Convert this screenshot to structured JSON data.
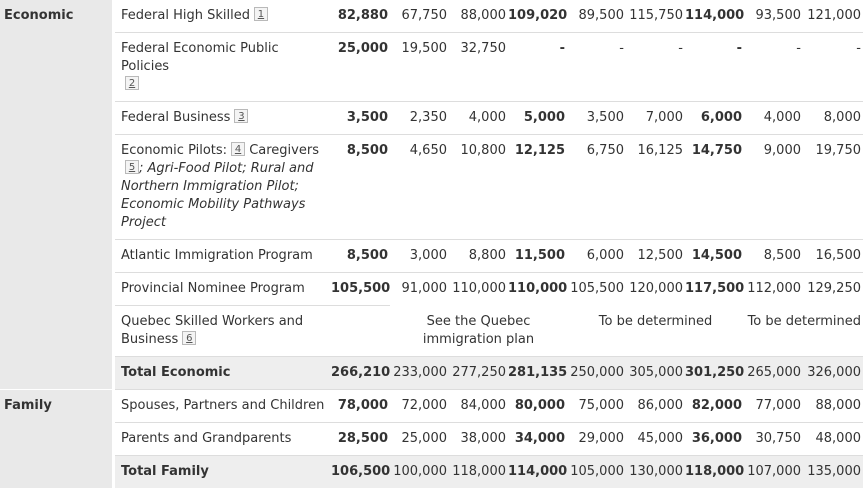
{
  "categories": {
    "economic": "Economic",
    "family": "Family"
  },
  "footnotes": [
    "1",
    "2",
    "3",
    "4",
    "5",
    "6"
  ],
  "rows": {
    "fhs": {
      "label": "Federal High Skilled",
      "values": [
        "82,880",
        "67,750",
        "88,000",
        "109,020",
        "89,500",
        "115,750",
        "114,000",
        "93,500",
        "121,000"
      ]
    },
    "fepp": {
      "label": "Federal Economic Public Policies",
      "values": [
        "25,000",
        "19,500",
        "32,750",
        "-",
        "-",
        "-",
        "-",
        "-",
        "-"
      ]
    },
    "fb": {
      "label": "Federal Business",
      "values": [
        "3,500",
        "2,350",
        "4,000",
        "5,000",
        "3,500",
        "7,000",
        "6,000",
        "4,000",
        "8,000"
      ]
    },
    "pilots": {
      "label_a": "Economic Pilots:",
      "label_b": "Caregivers",
      "label_c": "; Agri-Food Pilot; Rural and Northern Immigration Pilot; Economic Mobility Pathways Project",
      "values": [
        "8,500",
        "4,650",
        "10,800",
        "12,125",
        "6,750",
        "16,125",
        "14,750",
        "9,000",
        "19,750"
      ]
    },
    "aip": {
      "label": "Atlantic Immigration Program",
      "values": [
        "8,500",
        "3,000",
        "8,800",
        "11,500",
        "6,000",
        "12,500",
        "14,500",
        "8,500",
        "16,500"
      ]
    },
    "pnp": {
      "label": "Provincial Nominee Program",
      "values": [
        "105,500",
        "91,000",
        "110,000",
        "110,000",
        "105,500",
        "120,000",
        "117,500",
        "112,000",
        "129,250"
      ]
    },
    "quebec": {
      "label": "Quebec Skilled Workers and Business",
      "text_1": "See the Quebec immigration plan",
      "text_2": "To be determined",
      "text_3": "To be determined"
    },
    "total_economic": {
      "label": "Total Economic",
      "values": [
        "266,210",
        "233,000",
        "277,250",
        "281,135",
        "250,000",
        "305,000",
        "301,250",
        "265,000",
        "326,000"
      ]
    },
    "spouses": {
      "label": "Spouses, Partners and Children",
      "values": [
        "78,000",
        "72,000",
        "84,000",
        "80,000",
        "75,000",
        "86,000",
        "82,000",
        "77,000",
        "88,000"
      ]
    },
    "parents": {
      "label": "Parents and Grandparents",
      "values": [
        "28,500",
        "25,000",
        "38,000",
        "34,000",
        "29,000",
        "45,000",
        "36,000",
        "30,750",
        "48,000"
      ]
    },
    "total_family": {
      "label": "Total Family",
      "values": [
        "106,500",
        "100,000",
        "118,000",
        "114,000",
        "105,000",
        "130,000",
        "118,000",
        "107,000",
        "135,000"
      ]
    }
  }
}
